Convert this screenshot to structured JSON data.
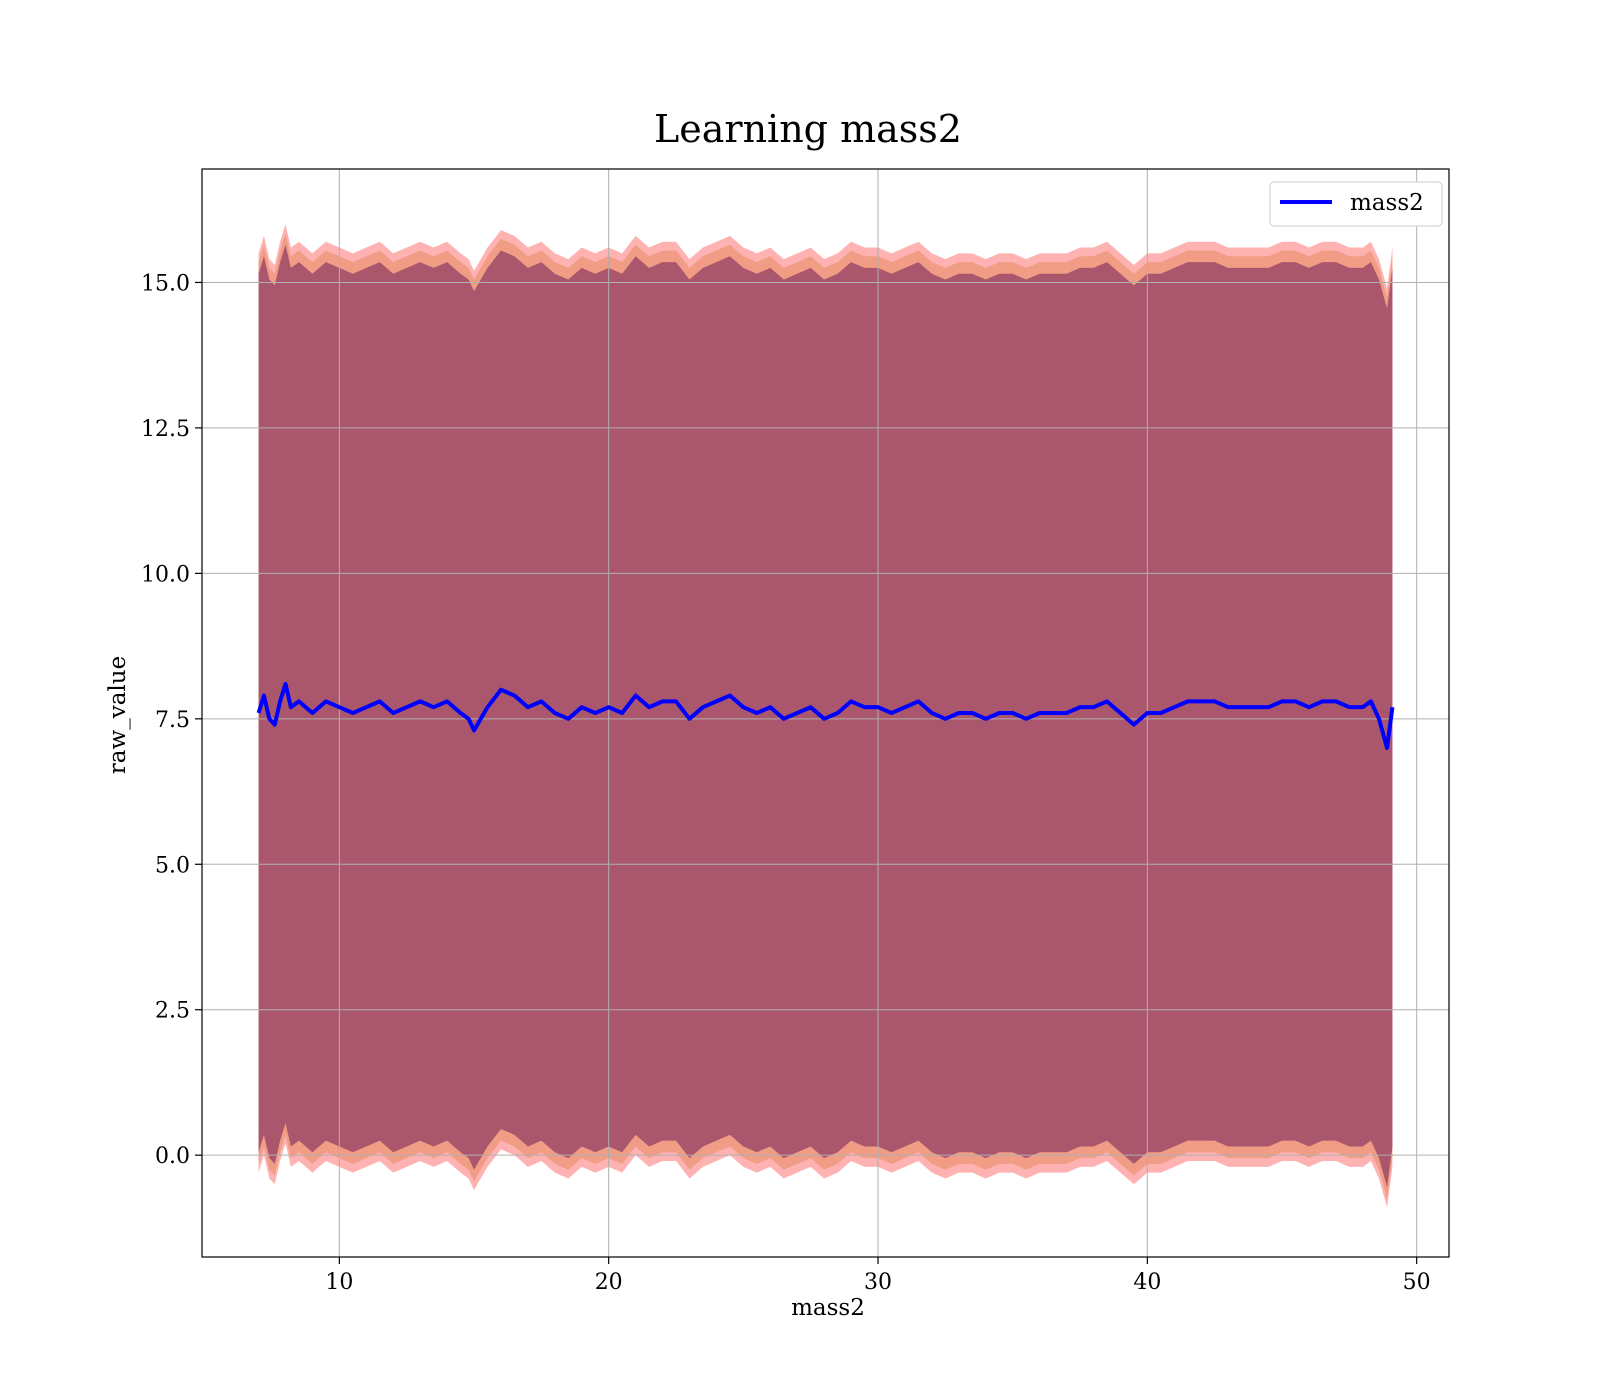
{
  "chart_data": {
    "type": "line",
    "title": "Learning mass2",
    "xlabel": "mass2",
    "ylabel": "raw_value",
    "xlim": [
      4.9,
      51.2
    ],
    "ylim": [
      -1.75,
      16.95
    ],
    "xticks": [
      10,
      20,
      30,
      40,
      50
    ],
    "xtick_labels": [
      "10",
      "20",
      "30",
      "40",
      "50"
    ],
    "yticks": [
      0.0,
      2.5,
      5.0,
      7.5,
      10.0,
      12.5,
      15.0
    ],
    "ytick_labels": [
      "0.0",
      "2.5",
      "5.0",
      "7.5",
      "10.0",
      "12.5",
      "15.0"
    ],
    "grid": true,
    "legend": {
      "position": "top-right",
      "entries": [
        "mass2"
      ]
    },
    "colors": {
      "line": "#0000ff",
      "band_outer": "#ff0000",
      "band_middle": "#d2691e",
      "band_inner": "#8b3a62"
    },
    "series": [
      {
        "name": "mass2",
        "x": [
          7.0,
          7.2,
          7.4,
          7.6,
          7.8,
          8.0,
          8.2,
          8.5,
          9.0,
          9.5,
          10.0,
          10.5,
          11.0,
          11.5,
          12.0,
          12.5,
          13.0,
          13.5,
          14.0,
          14.5,
          14.8,
          15.0,
          15.5,
          16.0,
          16.5,
          17.0,
          17.5,
          18.0,
          18.5,
          19.0,
          19.5,
          20.0,
          20.5,
          21.0,
          21.5,
          22.0,
          22.5,
          23.0,
          23.5,
          24.0,
          24.5,
          25.0,
          25.5,
          26.0,
          26.5,
          27.0,
          27.5,
          28.0,
          28.5,
          29.0,
          29.5,
          30.0,
          30.5,
          31.0,
          31.5,
          32.0,
          32.5,
          33.0,
          33.5,
          34.0,
          34.5,
          35.0,
          35.5,
          36.0,
          36.5,
          37.0,
          37.5,
          38.0,
          38.5,
          39.0,
          39.5,
          40.0,
          40.5,
          41.0,
          41.5,
          42.0,
          42.5,
          43.0,
          43.5,
          44.0,
          44.5,
          45.0,
          45.5,
          46.0,
          46.5,
          47.0,
          47.5,
          48.0,
          48.3,
          48.6,
          48.9,
          49.1
        ],
        "y": [
          7.6,
          7.9,
          7.5,
          7.4,
          7.8,
          8.1,
          7.7,
          7.8,
          7.6,
          7.8,
          7.7,
          7.6,
          7.7,
          7.8,
          7.6,
          7.7,
          7.8,
          7.7,
          7.8,
          7.6,
          7.5,
          7.3,
          7.7,
          8.0,
          7.9,
          7.7,
          7.8,
          7.6,
          7.5,
          7.7,
          7.6,
          7.7,
          7.6,
          7.9,
          7.7,
          7.8,
          7.8,
          7.5,
          7.7,
          7.8,
          7.9,
          7.7,
          7.6,
          7.7,
          7.5,
          7.6,
          7.7,
          7.5,
          7.6,
          7.8,
          7.7,
          7.7,
          7.6,
          7.7,
          7.8,
          7.6,
          7.5,
          7.6,
          7.6,
          7.5,
          7.6,
          7.6,
          7.5,
          7.6,
          7.6,
          7.6,
          7.7,
          7.7,
          7.8,
          7.6,
          7.4,
          7.6,
          7.6,
          7.7,
          7.8,
          7.8,
          7.8,
          7.7,
          7.7,
          7.7,
          7.7,
          7.8,
          7.8,
          7.7,
          7.8,
          7.8,
          7.7,
          7.7,
          7.8,
          7.5,
          7.0,
          7.7
        ]
      }
    ],
    "bands": [
      {
        "name": "outer",
        "offset_high": 7.9,
        "offset_low": -7.9
      },
      {
        "name": "middle",
        "offset_high": 7.75,
        "offset_low": -7.75
      },
      {
        "name": "inner",
        "offset_high": 7.55,
        "offset_low": -7.55
      }
    ]
  }
}
